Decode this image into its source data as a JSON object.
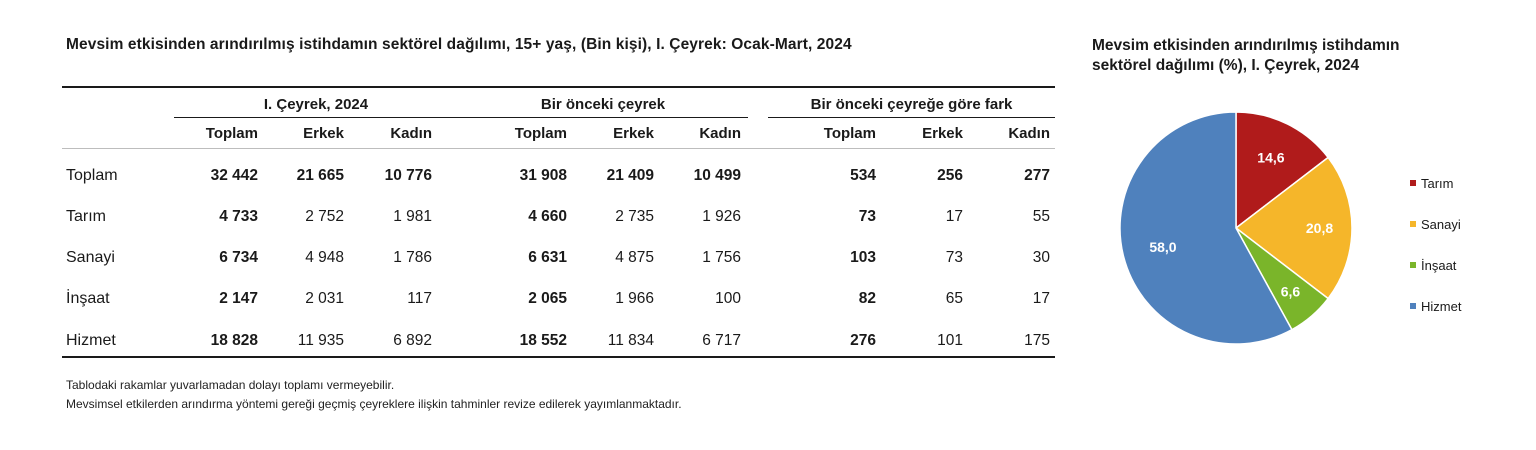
{
  "table": {
    "title": "Mevsim etkisinden arındırılmış istihdamın sektörel dağılımı, 15+ yaş, (Bin kişi), I. Çeyrek: Ocak-Mart, 2024",
    "groups": [
      "I. Çeyrek, 2024",
      "Bir önceki çeyrek",
      "Bir önceki çeyreğe göre fark"
    ],
    "subheaders": [
      "Toplam",
      "Erkek",
      "Kadın"
    ],
    "rows": [
      {
        "label": "Toplam",
        "values": [
          "32 442",
          "21 665",
          "10 776",
          "31 908",
          "21 409",
          "10 499",
          "534",
          "256",
          "277"
        ]
      },
      {
        "label": "Tarım",
        "values": [
          "4 733",
          "2 752",
          "1 981",
          "4 660",
          "2 735",
          "1 926",
          "73",
          "17",
          "55"
        ]
      },
      {
        "label": "Sanayi",
        "values": [
          "6 734",
          "4 948",
          "1 786",
          "6 631",
          "4 875",
          "1 756",
          "103",
          "73",
          "30"
        ]
      },
      {
        "label": "İnşaat",
        "values": [
          "2 147",
          "2 031",
          "117",
          "2 065",
          "1 966",
          "100",
          "82",
          "65",
          "17"
        ]
      },
      {
        "label": "Hizmet",
        "values": [
          "18 828",
          "11 935",
          "6 892",
          "18 552",
          "11 834",
          "6 717",
          "276",
          "101",
          "175"
        ]
      }
    ]
  },
  "notes": [
    "Tablodaki rakamlar yuvarlamadan dolayı toplamı vermeyebilir.",
    "Mevsimsel etkilerden arındırma yöntemi gereği geçmiş çeyreklere ilişkin tahminler revize edilerek yayımlanmaktadır."
  ],
  "chart_data": {
    "type": "pie",
    "title": "Mevsim etkisinden arındırılmış istihdamın sektörel dağılımı (%), I. Çeyrek, 2024",
    "title_lines": [
      "Mevsim etkisinden arındırılmış istihdamın",
      "sektörel dağılımı (%), I. Çeyrek, 2024"
    ],
    "categories": [
      "Tarım",
      "Sanayi",
      "İnşaat",
      "Hizmet"
    ],
    "values": [
      14.6,
      20.8,
      6.6,
      58.0
    ],
    "labels": [
      "14,6",
      "20,8",
      "6,6",
      "58,0"
    ],
    "colors": [
      "#b01b1b",
      "#f5b62a",
      "#7ab52a",
      "#4f81bd"
    ],
    "legend_position": "right"
  }
}
